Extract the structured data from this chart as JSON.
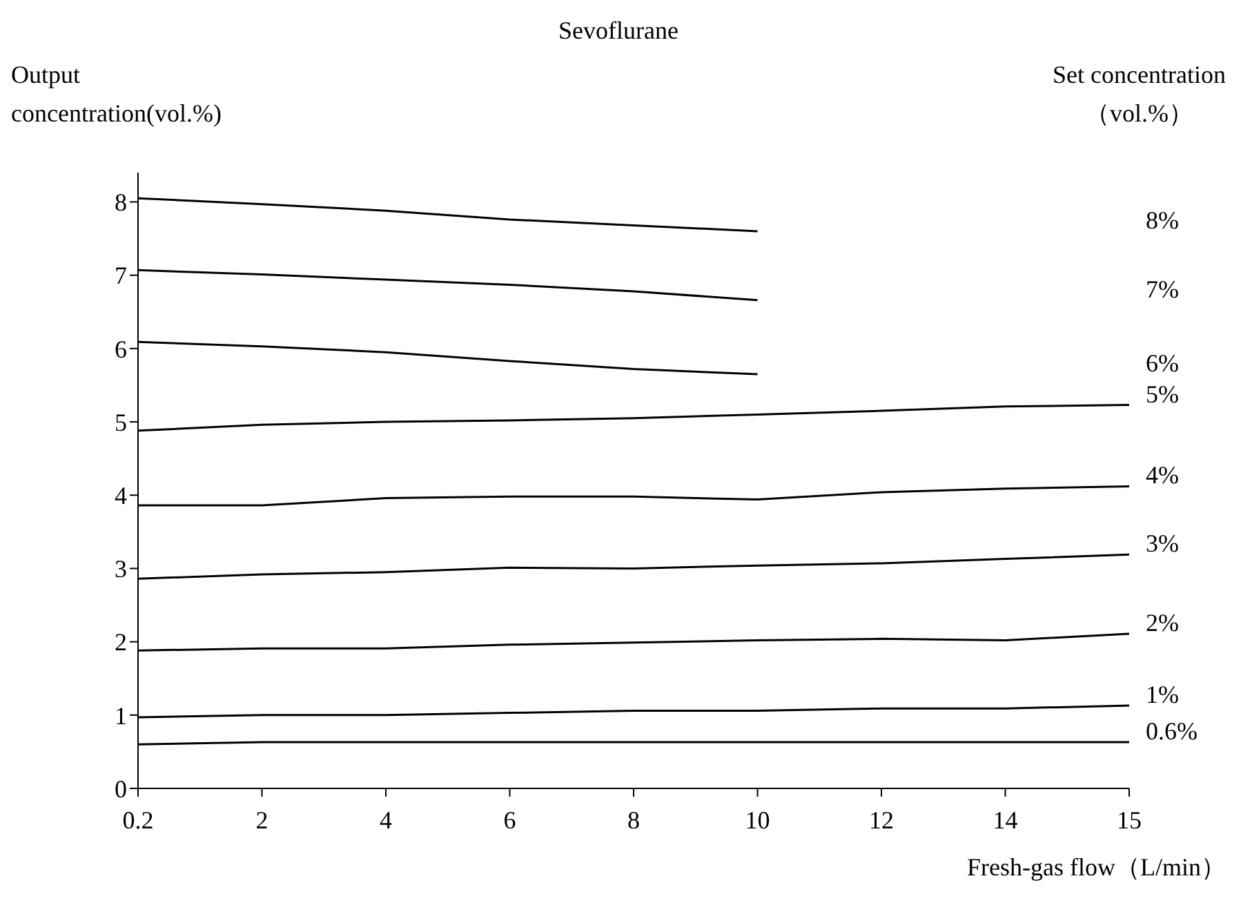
{
  "chart_data": {
    "type": "line",
    "title": "Sevoflurane",
    "xlabel": "Fresh-gas flow（L/min）",
    "ylabel": "Output\nconcentration(vol.%)",
    "legend_title": "Set concentration\n（vol.%）",
    "categories": [
      "0.2",
      "2",
      "4",
      "6",
      "8",
      "10",
      "12",
      "14",
      "15"
    ],
    "ylim": [
      0,
      8.4
    ],
    "yticks": [
      0,
      1,
      2,
      3,
      4,
      5,
      6,
      7,
      8
    ],
    "series": [
      {
        "name": "8%",
        "color": "#000000",
        "values": [
          8.05,
          7.97,
          7.88,
          7.76,
          7.68,
          7.6,
          null,
          null,
          null
        ]
      },
      {
        "name": "7%",
        "color": "#000000",
        "values": [
          7.07,
          7.01,
          6.94,
          6.87,
          6.78,
          6.66,
          null,
          null,
          null
        ]
      },
      {
        "name": "6%",
        "color": "#000000",
        "values": [
          6.09,
          6.03,
          5.95,
          5.83,
          5.72,
          5.65,
          null,
          null,
          null
        ]
      },
      {
        "name": "5%",
        "color": "#000000",
        "values": [
          4.88,
          4.96,
          5.0,
          5.02,
          5.05,
          5.1,
          5.15,
          5.21,
          5.23
        ]
      },
      {
        "name": "4%",
        "color": "#000000",
        "values": [
          3.86,
          3.86,
          3.96,
          3.98,
          3.98,
          3.94,
          4.04,
          4.09,
          4.12
        ]
      },
      {
        "name": "3%",
        "color": "#000000",
        "values": [
          2.86,
          2.92,
          2.95,
          3.01,
          3.0,
          3.04,
          3.07,
          3.13,
          3.19
        ]
      },
      {
        "name": "2%",
        "color": "#000000",
        "values": [
          1.88,
          1.91,
          1.91,
          1.96,
          1.99,
          2.02,
          2.04,
          2.02,
          2.11
        ]
      },
      {
        "name": "1%",
        "color": "#000000",
        "values": [
          0.97,
          1.0,
          1.0,
          1.03,
          1.06,
          1.06,
          1.09,
          1.09,
          1.13
        ]
      },
      {
        "name": "0.6%",
        "color": "#000000",
        "values": [
          0.6,
          0.63,
          0.63,
          0.63,
          0.63,
          0.63,
          0.63,
          0.63,
          0.63
        ]
      }
    ]
  }
}
